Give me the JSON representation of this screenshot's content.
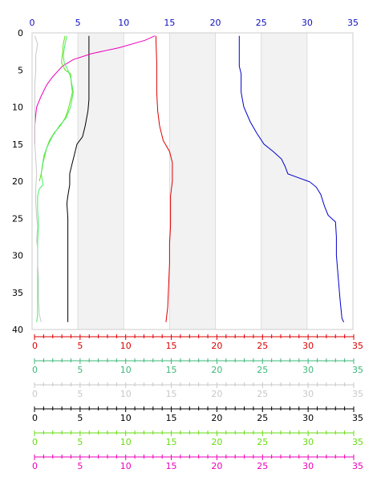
{
  "chart_data": {
    "type": "line",
    "orientation": "vertical-profile",
    "y_axis": {
      "ticks": [
        "0",
        "5",
        "10",
        "15",
        "20",
        "25",
        "30",
        "35",
        "40"
      ],
      "range": [
        0,
        40
      ],
      "inverted": true
    },
    "top_axis": {
      "color": "#1010c0",
      "ticks": [
        "0",
        "5",
        "10",
        "15",
        "20",
        "25",
        "30",
        "35"
      ],
      "range": [
        0,
        35
      ]
    },
    "bottom_axes": [
      {
        "color": "#dd0000",
        "ticks": [
          "0",
          "5",
          "10",
          "15",
          "20",
          "25",
          "30",
          "35"
        ],
        "range": [
          0,
          35
        ]
      },
      {
        "color": "#3cb878",
        "ticks": [
          "0",
          "5",
          "10",
          "15",
          "20",
          "25",
          "30",
          "35"
        ],
        "range": [
          0,
          35
        ]
      },
      {
        "color": "#c8c8c8",
        "ticks": [
          "0",
          "5",
          "10",
          "15",
          "20",
          "25",
          "30",
          "35"
        ],
        "range": [
          0,
          35
        ]
      },
      {
        "color": "#000000",
        "ticks": [
          "0",
          "5",
          "10",
          "15",
          "20",
          "25",
          "30",
          "35"
        ],
        "range": [
          0,
          35
        ]
      },
      {
        "color": "#66dd11",
        "ticks": [
          "0",
          "5",
          "10",
          "15",
          "20",
          "25",
          "30",
          "35"
        ],
        "range": [
          0,
          35
        ]
      },
      {
        "color": "#ee00bb",
        "ticks": [
          "0",
          "5",
          "10",
          "15",
          "20",
          "25",
          "30",
          "35"
        ],
        "range": [
          0,
          35
        ]
      }
    ],
    "shaded_bands": [
      [
        5,
        10
      ],
      [
        15,
        20
      ],
      [
        25,
        30
      ]
    ],
    "grid": true,
    "series": [
      {
        "color": "#0000cc",
        "points": [
          [
            22.6,
            0.4
          ],
          [
            22.6,
            4.5
          ],
          [
            22.8,
            5.5
          ],
          [
            22.8,
            8
          ],
          [
            23.1,
            10
          ],
          [
            23.8,
            12
          ],
          [
            24.5,
            13.5
          ],
          [
            25.3,
            15
          ],
          [
            26.3,
            16
          ],
          [
            27.2,
            17
          ],
          [
            27.6,
            18
          ],
          [
            27.9,
            19
          ],
          [
            29.2,
            19.6
          ],
          [
            30.3,
            20.1
          ],
          [
            31.0,
            20.8
          ],
          [
            31.5,
            21.8
          ],
          [
            31.9,
            23.4
          ],
          [
            32.3,
            24.6
          ],
          [
            33.1,
            25.5
          ],
          [
            33.2,
            27.5
          ],
          [
            33.2,
            30
          ],
          [
            33.4,
            33
          ],
          [
            33.6,
            36
          ],
          [
            33.8,
            38.5
          ],
          [
            34.0,
            39
          ]
        ]
      },
      {
        "color": "#dd0000",
        "points": [
          [
            13.5,
            0.4
          ],
          [
            13.6,
            4
          ],
          [
            13.6,
            8
          ],
          [
            13.7,
            10.5
          ],
          [
            13.9,
            12.5
          ],
          [
            14.3,
            14.5
          ],
          [
            15.0,
            16
          ],
          [
            15.3,
            17.5
          ],
          [
            15.3,
            20
          ],
          [
            15.1,
            22
          ],
          [
            15.1,
            26
          ],
          [
            15.0,
            28.5
          ],
          [
            15.0,
            31
          ],
          [
            14.9,
            34
          ],
          [
            14.8,
            37
          ],
          [
            14.6,
            39
          ]
        ]
      },
      {
        "color": "#000000",
        "points": [
          [
            6.2,
            0.4
          ],
          [
            6.2,
            4
          ],
          [
            6.2,
            8
          ],
          [
            6.2,
            9
          ],
          [
            6.1,
            10.5
          ],
          [
            5.8,
            12.5
          ],
          [
            5.5,
            14
          ],
          [
            4.9,
            15
          ],
          [
            4.6,
            16.5
          ],
          [
            4.3,
            18
          ],
          [
            4.1,
            19
          ],
          [
            4.1,
            20.5
          ],
          [
            3.9,
            22
          ],
          [
            3.8,
            23
          ],
          [
            3.9,
            25
          ],
          [
            3.9,
            27
          ],
          [
            3.9,
            30
          ],
          [
            3.9,
            31
          ],
          [
            3.9,
            33
          ],
          [
            3.9,
            36
          ],
          [
            3.9,
            39
          ]
        ]
      },
      {
        "color": "#ee00bb",
        "points": [
          [
            13.4,
            0.4
          ],
          [
            12.3,
            1.0
          ],
          [
            9.5,
            2.0
          ],
          [
            6.5,
            2.8
          ],
          [
            4.5,
            3.6
          ],
          [
            3.3,
            4.5
          ],
          [
            2.2,
            6
          ],
          [
            1.6,
            7
          ],
          [
            1.0,
            8.5
          ],
          [
            0.5,
            10
          ],
          [
            0.4,
            11
          ],
          [
            0.3,
            12.5
          ],
          [
            0.3,
            14
          ],
          [
            0.3,
            15
          ]
        ]
      },
      {
        "color": "#66dd11",
        "points": [
          [
            3.6,
            0.4
          ],
          [
            3.4,
            1.5
          ],
          [
            3.3,
            3
          ],
          [
            3.2,
            4
          ],
          [
            3.6,
            5
          ],
          [
            4.2,
            5.5
          ],
          [
            4.3,
            7
          ],
          [
            4.4,
            8
          ],
          [
            4.1,
            9.5
          ],
          [
            3.9,
            10.5
          ],
          [
            3.6,
            11.5
          ],
          [
            3.1,
            12.5
          ],
          [
            2.4,
            13.5
          ],
          [
            1.9,
            14.5
          ],
          [
            1.6,
            15.5
          ],
          [
            1.4,
            16.5
          ],
          [
            1.2,
            17.5
          ],
          [
            1.0,
            19
          ],
          [
            0.8,
            20
          ]
        ]
      },
      {
        "color": "#44ee66",
        "points": [
          [
            3.8,
            0.4
          ],
          [
            3.6,
            1.5
          ],
          [
            3.4,
            3
          ],
          [
            3.5,
            4
          ],
          [
            3.9,
            5
          ],
          [
            4.2,
            6
          ],
          [
            4.5,
            8
          ],
          [
            4.2,
            10
          ],
          [
            3.7,
            11.5
          ],
          [
            3.0,
            12.5
          ],
          [
            2.2,
            14
          ],
          [
            1.6,
            15.5
          ],
          [
            1.3,
            16.5
          ],
          [
            1.1,
            18
          ],
          [
            1.0,
            19
          ],
          [
            1.2,
            20.5
          ],
          [
            0.8,
            21
          ],
          [
            0.6,
            22
          ],
          [
            0.6,
            24
          ],
          [
            0.7,
            26
          ],
          [
            0.6,
            28
          ],
          [
            0.6,
            30
          ],
          [
            0.6,
            32
          ],
          [
            0.6,
            34
          ],
          [
            0.6,
            36
          ],
          [
            0.6,
            38
          ],
          [
            0.5,
            39
          ]
        ]
      },
      {
        "color": "#c8c8c8",
        "points": [
          [
            0.3,
            0.4
          ],
          [
            0.6,
            1.5
          ],
          [
            0.4,
            3
          ],
          [
            0.4,
            5
          ],
          [
            0.3,
            7
          ],
          [
            0.3,
            9
          ],
          [
            0.3,
            11
          ],
          [
            0.3,
            13
          ],
          [
            0.3,
            15
          ],
          [
            0.4,
            17
          ],
          [
            0.5,
            19
          ],
          [
            0.4,
            21
          ],
          [
            0.4,
            23
          ],
          [
            0.5,
            25
          ],
          [
            0.6,
            26
          ],
          [
            0.5,
            28
          ],
          [
            0.6,
            29
          ],
          [
            0.6,
            31
          ],
          [
            0.7,
            33
          ],
          [
            0.7,
            34
          ],
          [
            0.7,
            36
          ],
          [
            0.8,
            38
          ],
          [
            1.0,
            39
          ]
        ]
      }
    ]
  }
}
